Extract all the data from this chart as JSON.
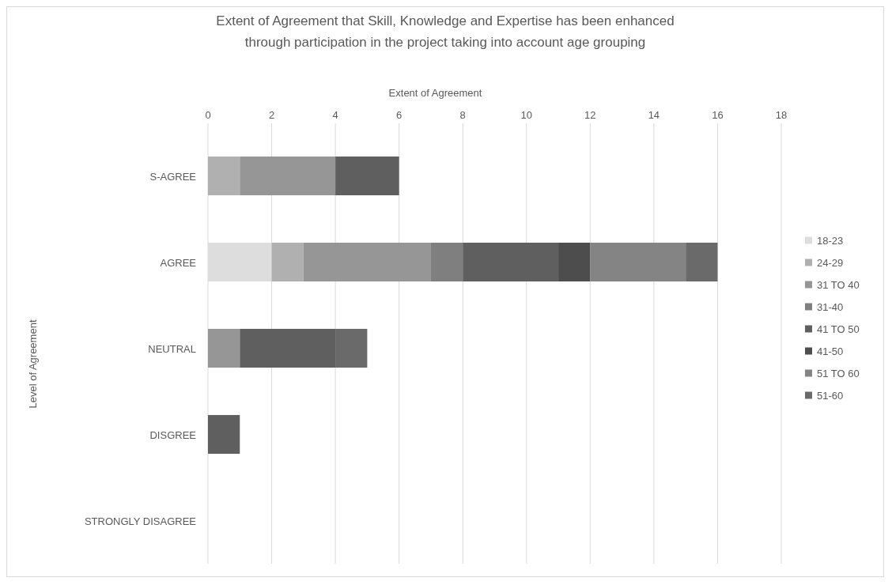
{
  "chart_data": {
    "type": "bar",
    "orientation": "horizontal",
    "stacked": true,
    "title": "Extent of Agreement that Skill, Knowledge and Expertise has been enhanced through participation in the project taking into account age grouping",
    "xlabel": "Extent of Agreement",
    "ylabel": "Level of Agreement",
    "categories": [
      "S-AGREE",
      "AGREE",
      "NEUTRAL",
      "DISGREE",
      "STRONGLY DISAGREE"
    ],
    "series": [
      {
        "name": "18-23",
        "color": "#dddddd",
        "values": [
          null,
          2,
          null,
          null,
          null
        ]
      },
      {
        "name": "24-29",
        "color": "#b0b0b0",
        "values": [
          1,
          1,
          null,
          null,
          null
        ]
      },
      {
        "name": "31 TO 40",
        "color": "#969696",
        "values": [
          3,
          4,
          1,
          null,
          null
        ]
      },
      {
        "name": "31-40",
        "color": "#7f7f7f",
        "values": [
          null,
          1,
          null,
          null,
          null
        ]
      },
      {
        "name": "41 TO 50",
        "color": "#5f5f5f",
        "values": [
          2,
          3,
          3,
          1,
          null
        ]
      },
      {
        "name": "41-50",
        "color": "#4d4d4d",
        "values": [
          null,
          1,
          null,
          null,
          null
        ]
      },
      {
        "name": "51 TO 60",
        "color": "#848484",
        "values": [
          null,
          3,
          null,
          null,
          null
        ]
      },
      {
        "name": "51-60",
        "color": "#6a6a6a",
        "values": [
          null,
          1,
          1,
          null,
          null
        ]
      }
    ],
    "xlim": [
      0,
      18
    ],
    "xticks": [
      0,
      2,
      4,
      6,
      8,
      10,
      12,
      14,
      16,
      18
    ],
    "grid": "x",
    "legend": "right"
  }
}
